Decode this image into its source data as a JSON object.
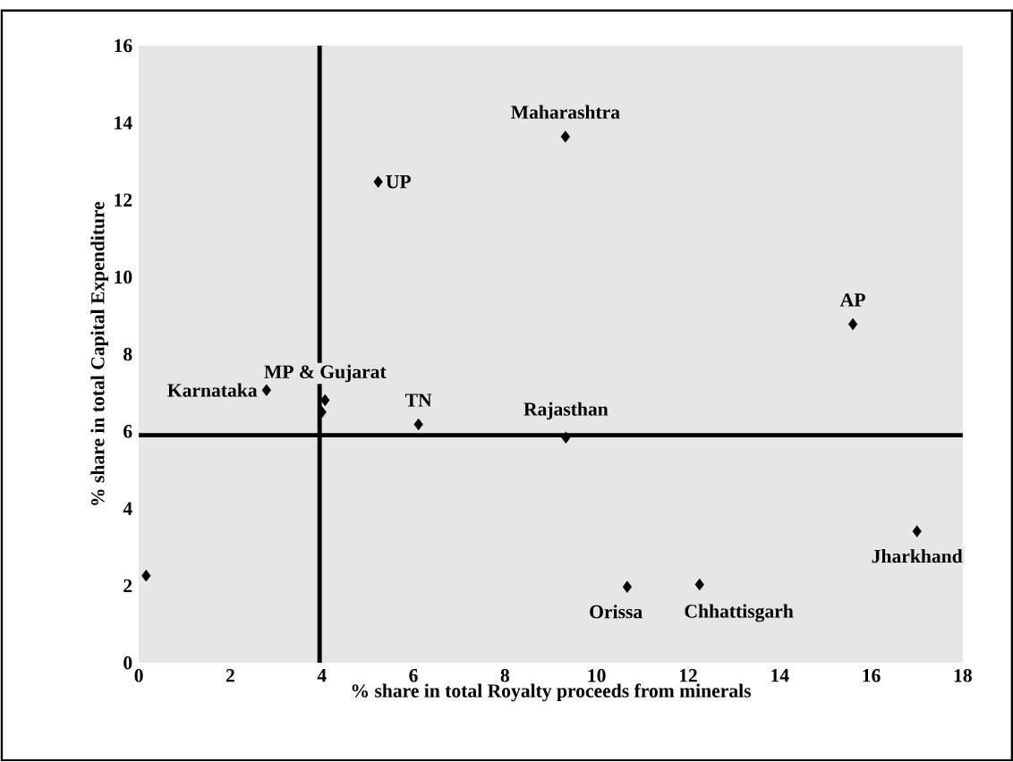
{
  "chart_data": {
    "type": "scatter",
    "xlabel": "% share in total Royalty proceeds from minerals",
    "ylabel": "% share in total Capital Expenditure",
    "x": [
      0.16,
      2.79,
      4.0,
      4.07,
      5.23,
      6.11,
      9.32,
      9.33,
      10.67,
      12.25,
      15.6,
      17.0
    ],
    "series": [
      {
        "color": "#000000",
        "values": [
          2.26,
          7.07,
          6.5,
          6.81,
          12.47,
          6.18,
          13.64,
          5.84,
          1.97,
          2.03,
          8.78,
          3.41
        ]
      }
    ],
    "marker": "diamond",
    "grid": false,
    "xlim": [
      0,
      18
    ],
    "xticks": [
      0,
      2,
      4,
      6,
      8,
      10,
      12,
      14,
      16,
      18
    ],
    "ylim": [
      0,
      16
    ],
    "yticks": [
      0,
      2,
      4,
      6,
      8,
      10,
      12,
      14,
      16
    ],
    "ref_lines": [
      {
        "axis": "x",
        "value": 3.95,
        "color": "#000000"
      },
      {
        "axis": "y",
        "value": 5.9,
        "color": "#000000"
      }
    ],
    "annotations": [
      {
        "text": "Maharashtra",
        "x": 9.32,
        "y": 13.64
      },
      {
        "text": "UP",
        "x": 5.23,
        "y": 12.47
      },
      {
        "text": "AP",
        "x": 15.6,
        "y": 8.78
      },
      {
        "text": "Karnataka",
        "x": 2.79,
        "y": 7.07
      },
      {
        "text": "MP & Gujarat",
        "x": 4.07,
        "y": 6.81
      },
      {
        "text": "TN",
        "x": 6.11,
        "y": 6.18
      },
      {
        "text": "Rajasthan",
        "x": 9.33,
        "y": 5.84
      },
      {
        "text": "Orissa",
        "x": 10.67,
        "y": 1.97
      },
      {
        "text": "Chhattisgarh",
        "x": 12.25,
        "y": 2.03
      },
      {
        "text": "Jharkhand",
        "x": 17.0,
        "y": 3.41
      }
    ]
  }
}
